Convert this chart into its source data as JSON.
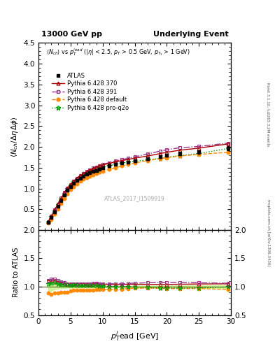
{
  "title_left": "13000 GeV pp",
  "title_right": "Underlying Event",
  "ylabel_main": "<N_{ch}/ \\u0394\\u03b7 \\u0394\\u03c6>",
  "ylabel_ratio": "Ratio to ATLAS",
  "xlabel_top": "p",
  "xlabel_bot": "T",
  "xlabel_label": "lead [GeV]",
  "annotation": "ATLAS_2017_I1509919",
  "right_label": "Rivet 3.1.10, \\u2265 3.2M events",
  "right_label2": "mcplots.cern.ch [arXiv:1306.3436]",
  "atlas_x": [
    1.5,
    2.0,
    2.5,
    3.0,
    3.5,
    4.0,
    4.5,
    5.0,
    5.5,
    6.0,
    6.5,
    7.0,
    7.5,
    8.0,
    8.5,
    9.0,
    9.5,
    10.0,
    11.0,
    12.0,
    13.0,
    14.0,
    15.0,
    17.0,
    19.0,
    20.0,
    22.0,
    25.0,
    29.5
  ],
  "atlas_y": [
    0.18,
    0.3,
    0.43,
    0.57,
    0.71,
    0.84,
    0.96,
    1.05,
    1.12,
    1.19,
    1.25,
    1.3,
    1.34,
    1.38,
    1.41,
    1.43,
    1.47,
    1.5,
    1.54,
    1.58,
    1.61,
    1.63,
    1.66,
    1.71,
    1.77,
    1.8,
    1.84,
    1.88,
    1.97
  ],
  "atlas_yerr": [
    0.02,
    0.02,
    0.02,
    0.02,
    0.02,
    0.02,
    0.02,
    0.02,
    0.02,
    0.02,
    0.02,
    0.02,
    0.02,
    0.02,
    0.02,
    0.02,
    0.02,
    0.02,
    0.02,
    0.02,
    0.02,
    0.02,
    0.03,
    0.03,
    0.03,
    0.03,
    0.04,
    0.04,
    0.05
  ],
  "py370_x": [
    1.5,
    2.0,
    2.5,
    3.0,
    3.5,
    4.0,
    4.5,
    5.0,
    5.5,
    6.0,
    6.5,
    7.0,
    7.5,
    8.0,
    8.5,
    9.0,
    9.5,
    10.0,
    11.0,
    12.0,
    13.0,
    14.0,
    15.0,
    17.0,
    19.0,
    20.0,
    22.0,
    25.0,
    29.5
  ],
  "py370_y": [
    0.2,
    0.33,
    0.48,
    0.62,
    0.76,
    0.89,
    1.01,
    1.1,
    1.18,
    1.25,
    1.31,
    1.36,
    1.4,
    1.44,
    1.48,
    1.51,
    1.54,
    1.57,
    1.6,
    1.64,
    1.67,
    1.7,
    1.73,
    1.78,
    1.84,
    1.87,
    1.92,
    1.97,
    2.07
  ],
  "py391_x": [
    1.5,
    2.0,
    2.5,
    3.0,
    3.5,
    4.0,
    4.5,
    5.0,
    5.5,
    6.0,
    6.5,
    7.0,
    7.5,
    8.0,
    8.5,
    9.0,
    9.5,
    10.0,
    11.0,
    12.0,
    13.0,
    14.0,
    15.0,
    17.0,
    19.0,
    20.0,
    22.0,
    25.0,
    29.5
  ],
  "py391_y": [
    0.2,
    0.34,
    0.49,
    0.63,
    0.77,
    0.9,
    1.01,
    1.1,
    1.18,
    1.25,
    1.31,
    1.36,
    1.41,
    1.45,
    1.49,
    1.52,
    1.55,
    1.58,
    1.62,
    1.66,
    1.69,
    1.73,
    1.76,
    1.83,
    1.9,
    1.93,
    1.98,
    2.01,
    2.09
  ],
  "pydef_x": [
    1.5,
    2.0,
    2.5,
    3.0,
    3.5,
    4.0,
    4.5,
    5.0,
    5.5,
    6.0,
    6.5,
    7.0,
    7.5,
    8.0,
    8.5,
    9.0,
    9.5,
    10.0,
    11.0,
    12.0,
    13.0,
    14.0,
    15.0,
    17.0,
    19.0,
    20.0,
    22.0,
    25.0,
    29.5
  ],
  "pydef_y": [
    0.16,
    0.26,
    0.38,
    0.51,
    0.64,
    0.76,
    0.87,
    0.97,
    1.05,
    1.11,
    1.17,
    1.22,
    1.26,
    1.3,
    1.33,
    1.36,
    1.39,
    1.42,
    1.46,
    1.5,
    1.54,
    1.58,
    1.61,
    1.67,
    1.72,
    1.74,
    1.78,
    1.82,
    1.87
  ],
  "pyq2o_x": [
    1.5,
    2.0,
    2.5,
    3.0,
    3.5,
    4.0,
    4.5,
    5.0,
    5.5,
    6.0,
    6.5,
    7.0,
    7.5,
    8.0,
    8.5,
    9.0,
    9.5,
    10.0,
    11.0,
    12.0,
    13.0,
    14.0,
    15.0,
    17.0,
    19.0,
    20.0,
    22.0,
    25.0,
    29.5
  ],
  "pyq2o_y": [
    0.19,
    0.32,
    0.46,
    0.6,
    0.74,
    0.87,
    0.99,
    1.08,
    1.16,
    1.22,
    1.28,
    1.33,
    1.37,
    1.41,
    1.44,
    1.46,
    1.49,
    1.52,
    1.55,
    1.58,
    1.61,
    1.63,
    1.65,
    1.69,
    1.72,
    1.75,
    1.79,
    1.84,
    1.96
  ],
  "atlas_color": "#000000",
  "py370_color": "#aa0000",
  "py391_color": "#993388",
  "pydef_color": "#ff8800",
  "pyq2o_color": "#009900",
  "xlim": [
    0,
    30
  ],
  "ylim_main": [
    0,
    4.5
  ],
  "ylim_ratio": [
    0.5,
    2.0
  ],
  "yticks_main": [
    0.5,
    1.0,
    1.5,
    2.0,
    2.5,
    3.0,
    3.5,
    4.0,
    4.5
  ],
  "yticks_ratio": [
    0.5,
    1.0,
    1.5,
    2.0
  ],
  "xticks": [
    0,
    5,
    10,
    15,
    20,
    25,
    30
  ]
}
